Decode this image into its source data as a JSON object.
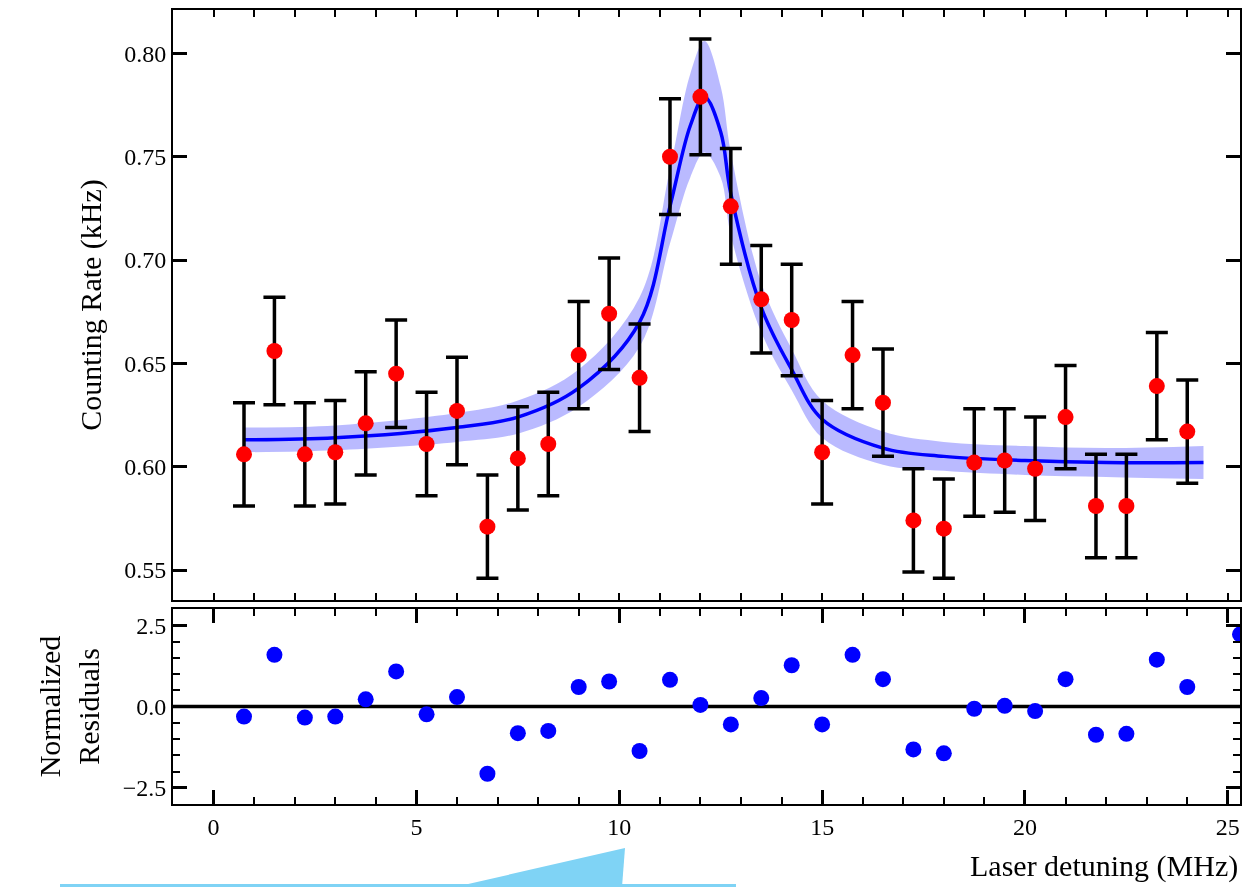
{
  "chart_data": [
    {
      "type": "scatter",
      "ylabel": "Counting Rate (kHz)",
      "tick_labels": "y",
      "xlim": [
        -1,
        25.3
      ],
      "xticks": [
        {
          "value": 0,
          "label": null
        },
        {
          "value": 1,
          "label": null
        },
        {
          "value": 2,
          "label": null
        },
        {
          "value": 3,
          "label": null
        },
        {
          "value": 4,
          "label": null
        },
        {
          "value": 5,
          "label": null
        },
        {
          "value": 6,
          "label": null
        },
        {
          "value": 7,
          "label": null
        },
        {
          "value": 8,
          "label": null
        },
        {
          "value": 9,
          "label": null
        },
        {
          "value": 10,
          "label": null
        },
        {
          "value": 11,
          "label": null
        },
        {
          "value": 12,
          "label": null
        },
        {
          "value": 13,
          "label": null
        },
        {
          "value": 14,
          "label": null
        },
        {
          "value": 15,
          "label": null
        },
        {
          "value": 16,
          "label": null
        },
        {
          "value": 17,
          "label": null
        },
        {
          "value": 18,
          "label": null
        },
        {
          "value": 19,
          "label": null
        },
        {
          "value": 20,
          "label": null
        },
        {
          "value": 21,
          "label": null
        },
        {
          "value": 22,
          "label": null
        },
        {
          "value": 23,
          "label": null
        },
        {
          "value": 24,
          "label": null
        },
        {
          "value": 25,
          "label": null
        }
      ],
      "ylim": [
        0.5355,
        0.821
      ],
      "yticks": [
        {
          "value": 0.55,
          "label": "0.55"
        },
        {
          "value": 0.6,
          "label": "0.60"
        },
        {
          "value": 0.65,
          "label": "0.65"
        },
        {
          "value": 0.7,
          "label": "0.70"
        },
        {
          "value": 0.75,
          "label": "0.75"
        },
        {
          "value": 0.8,
          "label": "0.80"
        }
      ],
      "series": [
        {
          "type": "line",
          "color": "#0000ff",
          "x": [
            0.75,
            3,
            6,
            7.5,
            9,
            10.5,
            11.25,
            11.75,
            12.1,
            12.5,
            12.75,
            13.5,
            14.25,
            15,
            16.5,
            18,
            20,
            22,
            24.4
          ],
          "values": [
            0.613,
            0.614,
            0.619,
            0.624,
            0.638,
            0.67,
            0.726,
            0.765,
            0.779,
            0.762,
            0.732,
            0.677,
            0.647,
            0.623,
            0.609,
            0.605,
            0.603,
            0.602,
            0.602
          ],
          "lower": [
            0.607,
            0.608,
            0.612,
            0.616,
            0.629,
            0.658,
            0.708,
            0.74,
            0.752,
            0.74,
            0.712,
            0.665,
            0.637,
            0.614,
            0.601,
            0.598,
            0.596,
            0.595,
            0.594
          ],
          "upper": [
            0.619,
            0.62,
            0.626,
            0.632,
            0.647,
            0.682,
            0.744,
            0.79,
            0.806,
            0.784,
            0.752,
            0.689,
            0.657,
            0.632,
            0.617,
            0.612,
            0.61,
            0.609,
            0.61
          ]
        },
        {
          "color": "#ff0000",
          "marker": "circle",
          "x": [
            0.75,
            1.5,
            2.25,
            3,
            3.75,
            4.5,
            5.25,
            6,
            6.75,
            7.5,
            8.25,
            9,
            9.75,
            10.5,
            11.25,
            12,
            12.75,
            13.5,
            14.25,
            15,
            15.75,
            16.5,
            17.25,
            18,
            18.75,
            19.5,
            20.25,
            21,
            21.75,
            22.5,
            23.25,
            24
          ],
          "values": [
            0.606,
            0.656,
            0.606,
            0.607,
            0.621,
            0.645,
            0.611,
            0.627,
            0.571,
            0.604,
            0.611,
            0.654,
            0.674,
            0.643,
            0.75,
            0.779,
            0.726,
            0.681,
            0.671,
            0.607,
            0.654,
            0.631,
            0.574,
            0.57,
            0.602,
            0.603,
            0.599,
            0.624,
            0.581,
            0.581,
            0.639,
            0.617
          ],
          "errors": [
            0.025,
            0.026,
            0.025,
            0.025,
            0.025,
            0.026,
            0.025,
            0.026,
            0.025,
            0.025,
            0.025,
            0.026,
            0.027,
            0.026,
            0.028,
            0.028,
            0.028,
            0.026,
            0.027,
            0.025,
            0.026,
            0.026,
            0.025,
            0.024,
            0.026,
            0.025,
            0.025,
            0.025,
            0.025,
            0.025,
            0.026,
            0.025
          ]
        }
      ]
    },
    {
      "type": "scatter",
      "xlabel": "Laser detuning (MHz)",
      "ylabel": "Normalized\nResiduals",
      "marker": "circle",
      "xlim": [
        -1,
        25.3
      ],
      "xticks": [
        0,
        {
          "value": 1,
          "label": null
        },
        {
          "value": 2,
          "label": null
        },
        {
          "value": 3,
          "label": null
        },
        {
          "value": 4,
          "label": null
        },
        5,
        {
          "value": 6,
          "label": null
        },
        {
          "value": 7,
          "label": null
        },
        {
          "value": 8,
          "label": null
        },
        {
          "value": 9,
          "label": null
        },
        10,
        {
          "value": 11,
          "label": null
        },
        {
          "value": 12,
          "label": null
        },
        {
          "value": 13,
          "label": null
        },
        {
          "value": 14,
          "label": null
        },
        15,
        {
          "value": 16,
          "label": null
        },
        {
          "value": 17,
          "label": null
        },
        {
          "value": 18,
          "label": null
        },
        {
          "value": 19,
          "label": null
        },
        20,
        {
          "value": 21,
          "label": null
        },
        {
          "value": 22,
          "label": null
        },
        {
          "value": 23,
          "label": null
        },
        {
          "value": 24,
          "label": null
        },
        25
      ],
      "ylim": [
        -3,
        3
      ],
      "yticks": [
        {
          "value": -2.5,
          "label": "−2.5"
        },
        {
          "value": -2,
          "label": null
        },
        {
          "value": -1.5,
          "label": null
        },
        {
          "value": -1,
          "label": null
        },
        {
          "value": -0.5,
          "label": null
        },
        {
          "value": 0,
          "label": "0.0"
        },
        {
          "value": 0.5,
          "label": null
        },
        {
          "value": 1,
          "label": null
        },
        {
          "value": 1.5,
          "label": null
        },
        {
          "value": 2,
          "label": null
        },
        {
          "value": 2.5,
          "label": "2.5"
        }
      ],
      "ref_lines": [
        {
          "axis": "y",
          "value": 0,
          "color": "#000000"
        }
      ],
      "series": [
        {
          "color": "#0000ff",
          "x": [
            0.75,
            1.5,
            2.25,
            3,
            3.75,
            4.5,
            5.25,
            6,
            6.75,
            7.5,
            8.25,
            9,
            9.75,
            10.5,
            11.25,
            12,
            12.75,
            13.5,
            14.25,
            15,
            15.75,
            16.5,
            17.25,
            18,
            18.75,
            19.5,
            20.25,
            21,
            21.75,
            22.5,
            23.25,
            24,
            25.3
          ],
          "values": [
            -0.31,
            1.59,
            -0.34,
            -0.31,
            0.22,
            1.08,
            -0.24,
            0.29,
            -2.07,
            -0.82,
            -0.75,
            0.6,
            0.77,
            -1.37,
            0.82,
            0.05,
            -0.55,
            0.26,
            1.27,
            -0.55,
            1.59,
            0.84,
            -1.32,
            -1.44,
            -0.07,
            0.02,
            -0.14,
            0.84,
            -0.87,
            -0.84,
            1.44,
            0.6,
            2.22
          ]
        }
      ]
    }
  ]
}
